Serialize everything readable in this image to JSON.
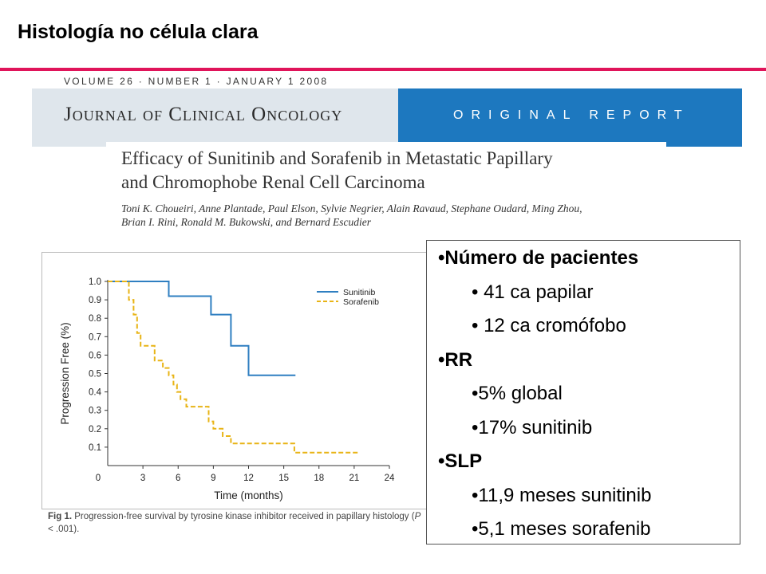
{
  "slide": {
    "title": "Histología no célula clara"
  },
  "article": {
    "meta": "VOLUME 26 · NUMBER 1 · JANUARY 1 2008",
    "journal": "Journal of Clinical Oncology",
    "report": "ORIGINAL REPORT",
    "title_line1": "Efficacy of Sunitinib and Sorafenib in Metastatic Papillary",
    "title_line2": "and Chromophobe Renal Cell Carcinoma",
    "authors_line1": "Toni K. Choueiri, Anne Plantade, Paul Elson, Sylvie Negrier, Alain Ravaud, Stephane Oudard, Ming Zhou,",
    "authors_line2": "Brian I. Rini, Ronald M. Bukowski, and Bernard Escudier"
  },
  "figure": {
    "caption_bold": "Fig 1.",
    "caption_text_1": "Progression-free survival by tyrosine kinase inhibitor received in papillary histology (",
    "caption_p": "P",
    "caption_text_2": " < .001)."
  },
  "chart_data": {
    "type": "line",
    "title": "",
    "xlabel": "Time (months)",
    "ylabel": "Progression Free (%)",
    "xlim": [
      0,
      24
    ],
    "ylim": [
      0,
      1.0
    ],
    "x_ticks": [
      "0",
      "3",
      "6",
      "9",
      "12",
      "15",
      "18",
      "21",
      "24"
    ],
    "y_ticks": [
      "1.0",
      "0.9",
      "0.8",
      "0.7",
      "0.6",
      "0.5",
      "0.4",
      "0.3",
      "0.2",
      "0.1"
    ],
    "legend": "top-right",
    "series": [
      {
        "name": "Sunitinib",
        "color": "#2f7fc1",
        "dash": "solid",
        "steps": [
          [
            0,
            1.0
          ],
          [
            5.2,
            1.0
          ],
          [
            5.2,
            0.92
          ],
          [
            8.8,
            0.92
          ],
          [
            8.8,
            0.82
          ],
          [
            10.5,
            0.82
          ],
          [
            10.5,
            0.65
          ],
          [
            12,
            0.65
          ],
          [
            12,
            0.49
          ],
          [
            16,
            0.49
          ]
        ]
      },
      {
        "name": "Sorafenib",
        "color": "#e8b416",
        "dash": "dashed",
        "steps": [
          [
            0,
            1.0
          ],
          [
            1.8,
            1.0
          ],
          [
            1.8,
            0.9
          ],
          [
            2.2,
            0.9
          ],
          [
            2.2,
            0.82
          ],
          [
            2.5,
            0.82
          ],
          [
            2.5,
            0.72
          ],
          [
            2.8,
            0.72
          ],
          [
            2.8,
            0.65
          ],
          [
            4.0,
            0.65
          ],
          [
            4.0,
            0.57
          ],
          [
            4.7,
            0.57
          ],
          [
            4.7,
            0.53
          ],
          [
            5.2,
            0.53
          ],
          [
            5.2,
            0.49
          ],
          [
            5.6,
            0.49
          ],
          [
            5.6,
            0.44
          ],
          [
            5.9,
            0.44
          ],
          [
            5.9,
            0.4
          ],
          [
            6.2,
            0.4
          ],
          [
            6.2,
            0.36
          ],
          [
            6.7,
            0.36
          ],
          [
            6.7,
            0.32
          ],
          [
            8.6,
            0.32
          ],
          [
            8.6,
            0.24
          ],
          [
            9.0,
            0.24
          ],
          [
            9.0,
            0.2
          ],
          [
            9.8,
            0.2
          ],
          [
            9.8,
            0.16
          ],
          [
            10.5,
            0.16
          ],
          [
            10.5,
            0.12
          ],
          [
            15.9,
            0.12
          ],
          [
            15.9,
            0.07
          ],
          [
            21.5,
            0.07
          ]
        ]
      }
    ]
  },
  "info": {
    "item1": "•Número de pacientes",
    "item1a": "• 41 ca  papilar",
    "item1b": "• 12 ca cromófobo",
    "item2": "•RR",
    "item2a": "•5% global",
    "item2b": "•17% sunitinib",
    "item3": "•SLP",
    "item3a": "•11,9 meses sunitinib",
    "item3b": "•5,1 meses sorafenib"
  }
}
